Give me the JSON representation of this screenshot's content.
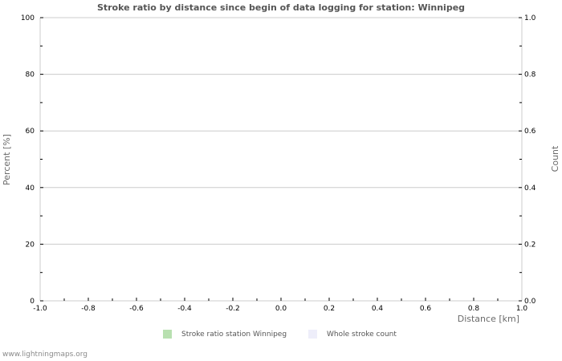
{
  "chart_data": {
    "type": "bar",
    "title": "Stroke ratio by distance since begin of data logging for station: Winnipeg",
    "xlabel": "Distance   [km]",
    "ylabel": "Percent   [%]",
    "ylabel_right": "Count",
    "xlim": [
      -1.0,
      1.0
    ],
    "ylim": [
      0,
      100
    ],
    "ylim_right": [
      0.0,
      1.0
    ],
    "x_ticks": [
      "-1.0",
      "-0.8",
      "-0.6",
      "-0.4",
      "-0.2",
      "0.0",
      "0.2",
      "0.4",
      "0.6",
      "0.8",
      "1.0"
    ],
    "y_ticks": [
      "0",
      "20",
      "40",
      "60",
      "80",
      "100"
    ],
    "y_ticks_right": [
      "0.0",
      "0.2",
      "0.4",
      "0.6",
      "0.8",
      "1.0"
    ],
    "grid": true,
    "legend_position": "bottom",
    "series": [
      {
        "name": "Stroke ratio station Winnipeg",
        "color": "#b8e0b0",
        "values": []
      },
      {
        "name": "Whole stroke count",
        "color": "#eeeefa",
        "values": []
      }
    ]
  },
  "footer": {
    "text": "www.lightningmaps.org"
  }
}
